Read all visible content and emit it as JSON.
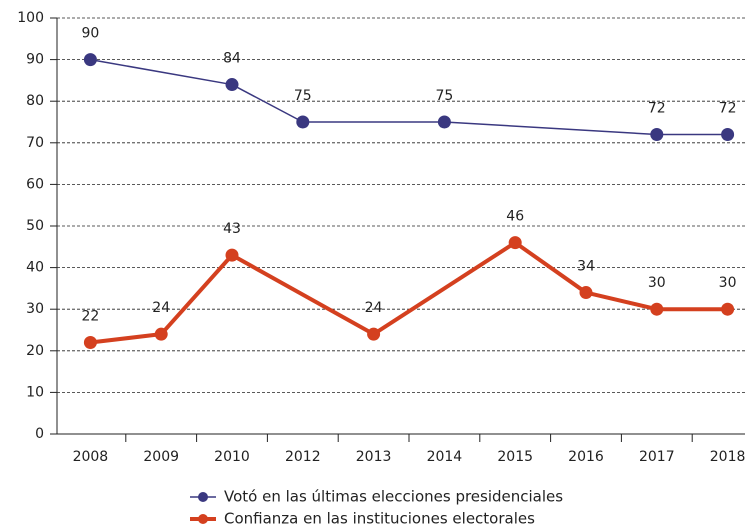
{
  "chart_data": {
    "type": "line",
    "categories": [
      "2008",
      "2009",
      "2010",
      "2012",
      "2013",
      "2014",
      "2015",
      "2016",
      "2017",
      "2018"
    ],
    "series": [
      {
        "name": "Votó en las últimas elecciones presidenciales",
        "color": "#3a3880",
        "width": 1.5,
        "values": [
          90,
          null,
          84,
          75,
          null,
          75,
          null,
          null,
          72,
          72
        ]
      },
      {
        "name": "Confianza en las instituciones electorales",
        "color": "#d4401f",
        "width": 4,
        "values": [
          22,
          24,
          43,
          null,
          24,
          null,
          46,
          34,
          30,
          30
        ]
      }
    ],
    "ylim": [
      0,
      100
    ],
    "yticks": [
      0,
      10,
      20,
      30,
      40,
      50,
      60,
      70,
      80,
      90,
      100
    ],
    "grid": true,
    "legend": "bottom"
  }
}
